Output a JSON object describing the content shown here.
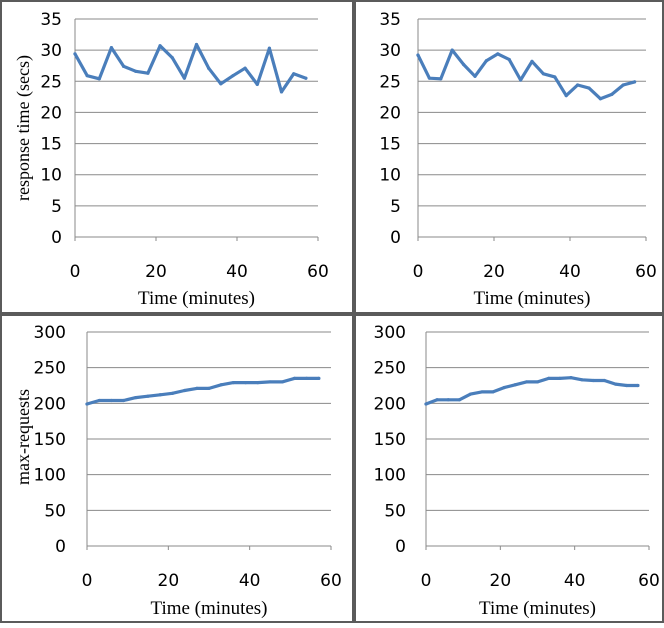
{
  "colors": {
    "series": "#4a7ebb",
    "frame": "#5b5b5b",
    "grid": "#8a8a8a"
  },
  "chart_data": [
    {
      "type": "line",
      "xlabel": "Time (minutes)",
      "ylabel": "response time (secs)",
      "xlim": [
        0,
        60
      ],
      "ylim": [
        0,
        35
      ],
      "xticks": [
        "0",
        "20",
        "40",
        "60"
      ],
      "yticks": [
        "0",
        "5",
        "10",
        "15",
        "20",
        "25",
        "30",
        "35"
      ],
      "grid": true,
      "x": [
        0,
        3,
        6,
        9,
        12,
        15,
        18,
        21,
        24,
        27,
        30,
        33,
        36,
        39,
        42,
        45,
        48,
        51,
        54,
        57
      ],
      "series": [
        {
          "values": [
            29.4,
            25.9,
            25.4,
            30.4,
            27.4,
            26.6,
            26.3,
            30.7,
            28.8,
            25.5,
            30.9,
            27.1,
            24.6,
            25.9,
            27.1,
            24.5,
            30.3,
            23.3,
            26.2,
            25.5
          ]
        }
      ]
    },
    {
      "type": "line",
      "xlabel": "Time (minutes)",
      "ylabel": "",
      "xlim": [
        0,
        60
      ],
      "ylim": [
        0,
        35
      ],
      "xticks": [
        "0",
        "20",
        "40",
        "60"
      ],
      "yticks": [
        "0",
        "5",
        "10",
        "15",
        "20",
        "25",
        "30",
        "35"
      ],
      "grid": true,
      "x": [
        0,
        3,
        6,
        9,
        12,
        15,
        18,
        21,
        24,
        27,
        30,
        33,
        36,
        39,
        42,
        45,
        48,
        51,
        54,
        57
      ],
      "series": [
        {
          "values": [
            29.2,
            25.5,
            25.4,
            30.0,
            27.7,
            25.8,
            28.3,
            29.4,
            28.5,
            25.2,
            28.2,
            26.2,
            25.7,
            22.7,
            24.4,
            23.9,
            22.2,
            22.9,
            24.4,
            24.9
          ]
        }
      ]
    },
    {
      "type": "line",
      "xlabel": "Time (minutes)",
      "ylabel": "max-requests",
      "xlim": [
        0,
        60
      ],
      "ylim": [
        0,
        300
      ],
      "xticks": [
        "0",
        "20",
        "40",
        "60"
      ],
      "yticks": [
        "0",
        "50",
        "100",
        "150",
        "200",
        "250",
        "300"
      ],
      "grid": true,
      "x": [
        0,
        3,
        6,
        9,
        12,
        15,
        18,
        21,
        24,
        27,
        30,
        33,
        36,
        39,
        42,
        45,
        48,
        51,
        54,
        57
      ],
      "series": [
        {
          "values": [
            199,
            204,
            204,
            204,
            208,
            210,
            212,
            214,
            218,
            221,
            221,
            226,
            229,
            229,
            229,
            230,
            230,
            235,
            235,
            235
          ]
        }
      ]
    },
    {
      "type": "line",
      "xlabel": "Time (minutes)",
      "ylabel": "",
      "xlim": [
        0,
        60
      ],
      "ylim": [
        0,
        300
      ],
      "xticks": [
        "0",
        "20",
        "40",
        "60"
      ],
      "yticks": [
        "0",
        "50",
        "100",
        "150",
        "200",
        "250",
        "300"
      ],
      "grid": true,
      "x": [
        0,
        3,
        6,
        9,
        12,
        15,
        18,
        21,
        24,
        27,
        30,
        33,
        36,
        39,
        42,
        45,
        48,
        51,
        54,
        57
      ],
      "series": [
        {
          "values": [
            199,
            205,
            205,
            205,
            213,
            216,
            216,
            222,
            226,
            230,
            230,
            235,
            235,
            236,
            233,
            232,
            232,
            227,
            225,
            225
          ]
        }
      ]
    }
  ]
}
